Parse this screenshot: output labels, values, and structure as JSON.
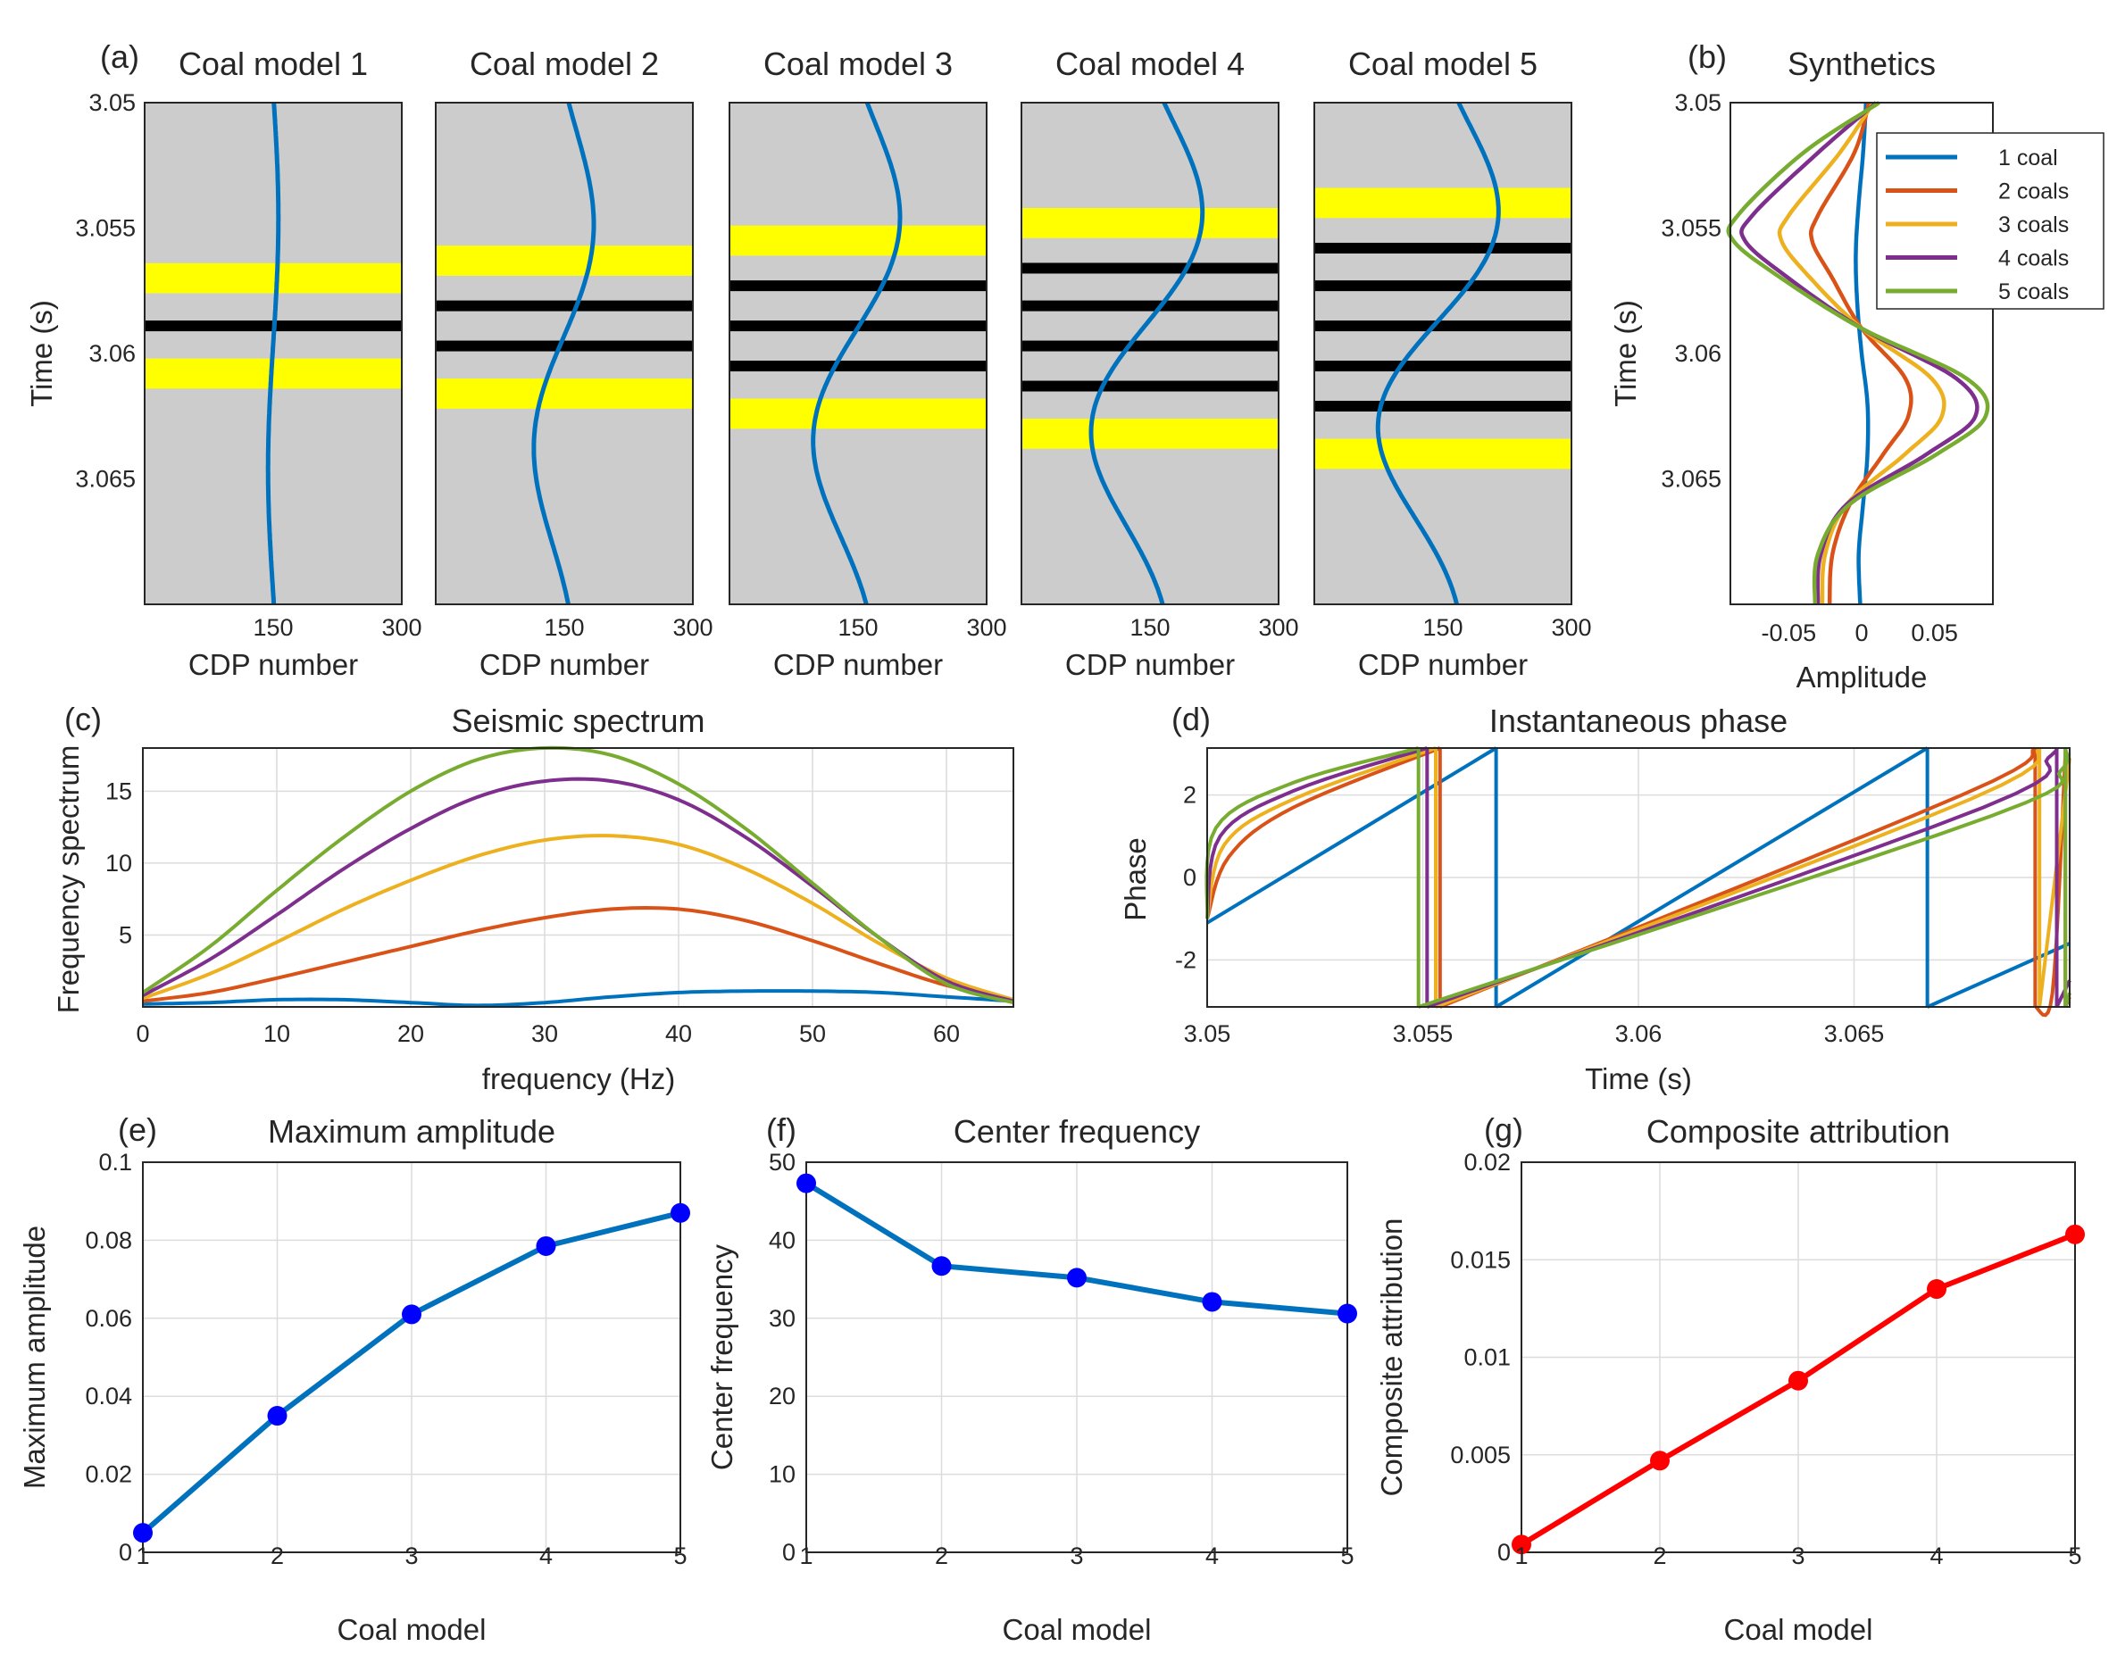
{
  "figure": {
    "panel_tags": [
      "(a)",
      "(b)",
      "(c)",
      "(d)",
      "(e)",
      "(f)",
      "(g)"
    ]
  },
  "chart_data": [
    {
      "id": "a",
      "type": "line",
      "panel_tag": "(a)",
      "subplots": [
        {
          "title": "Coal model 1",
          "yellow": [
            [
              3.0564,
              3.0576
            ],
            [
              3.0602,
              3.0614
            ]
          ],
          "black": [
            3.0589
          ],
          "trace": {
            "amp": 6,
            "decay": 0,
            "phase": 0
          }
        },
        {
          "title": "Coal model 2",
          "yellow": [
            [
              3.0557,
              3.0569
            ],
            [
              3.061,
              3.0622
            ]
          ],
          "black": [
            3.0581,
            3.0597
          ],
          "trace": {
            "amp": 40,
            "decay": 0.3,
            "phase": 0.1
          }
        },
        {
          "title": "Coal model 3",
          "yellow": [
            [
              3.0549,
              3.0561
            ],
            [
              3.0618,
              3.063
            ]
          ],
          "black": [
            3.0573,
            3.0589,
            3.0605
          ],
          "trace": {
            "amp": 58,
            "decay": 0.3,
            "phase": 0.2
          }
        },
        {
          "title": "Coal model 4",
          "yellow": [
            [
              3.0542,
              3.0554
            ],
            [
              3.0626,
              3.0638
            ]
          ],
          "black": [
            3.0566,
            3.0581,
            3.0597,
            3.0613
          ],
          "trace": {
            "amp": 76,
            "decay": 0.35,
            "phase": 0.3
          }
        },
        {
          "title": "Coal model 5",
          "yellow": [
            [
              3.0534,
              3.0546
            ],
            [
              3.0634,
              3.0646
            ]
          ],
          "black": [
            3.0558,
            3.0573,
            3.0589,
            3.0605,
            3.0621
          ],
          "trace": {
            "amp": 84,
            "decay": 0.4,
            "phase": 0.35
          }
        }
      ],
      "xlabel": "CDP number",
      "ylabel": "Time (s)",
      "xticks": [
        150,
        300
      ],
      "xlim": [
        0,
        300
      ],
      "yticks": [
        "3.05",
        "3.055",
        "3.06",
        "3.065"
      ],
      "ylim": [
        3.05,
        3.07
      ],
      "colors": {
        "background": "#cccccc",
        "coal": "#000000",
        "marker": "#ffff00",
        "trace": "#0072bd"
      }
    },
    {
      "id": "b",
      "type": "line",
      "panel_tag": "(b)",
      "title": "Synthetics",
      "xlabel": "Amplitude",
      "ylabel": "Time (s)",
      "xticks": [
        "-0.05",
        "0",
        "0.05"
      ],
      "xlim": [
        -0.09,
        0.09
      ],
      "yticks": [
        "3.05",
        "3.055",
        "3.06",
        "3.065"
      ],
      "ylim": [
        3.05,
        3.07
      ],
      "legend_position": "top-right",
      "series": [
        {
          "name": "1 coal",
          "color": "#0072bd",
          "t": [
            3.05,
            3.052,
            3.054,
            3.056,
            3.058,
            3.06,
            3.062,
            3.064,
            3.066,
            3.068,
            3.07
          ],
          "amp": [
            0.003,
            0.001,
            -0.002,
            -0.004,
            -0.003,
            0.0,
            0.004,
            0.004,
            0.001,
            -0.002,
            -0.001
          ]
        },
        {
          "name": "2 coals",
          "color": "#d95319",
          "t": [
            3.05,
            3.052,
            3.0545,
            3.0555,
            3.057,
            3.059,
            3.061,
            3.0625,
            3.064,
            3.066,
            3.068,
            3.07
          ],
          "amp": [
            0.005,
            -0.005,
            -0.03,
            -0.034,
            -0.02,
            0.0,
            0.03,
            0.032,
            0.015,
            -0.008,
            -0.02,
            -0.022
          ]
        },
        {
          "name": "3 coals",
          "color": "#edb120",
          "t": [
            3.05,
            3.052,
            3.0545,
            3.0555,
            3.057,
            3.059,
            3.061,
            3.0625,
            3.064,
            3.066,
            3.068,
            3.07
          ],
          "amp": [
            0.008,
            -0.015,
            -0.05,
            -0.055,
            -0.035,
            0.0,
            0.048,
            0.055,
            0.03,
            -0.01,
            -0.025,
            -0.027
          ]
        },
        {
          "name": "4 coals",
          "color": "#7e2f8e",
          "t": [
            3.05,
            3.052,
            3.0545,
            3.0555,
            3.057,
            3.059,
            3.061,
            3.0625,
            3.064,
            3.066,
            3.068,
            3.07
          ],
          "amp": [
            0.01,
            -0.03,
            -0.075,
            -0.08,
            -0.05,
            0.0,
            0.065,
            0.078,
            0.045,
            -0.01,
            -0.028,
            -0.03
          ]
        },
        {
          "name": "5 coals",
          "color": "#77ac30",
          "t": [
            3.05,
            3.052,
            3.0545,
            3.0555,
            3.057,
            3.059,
            3.061,
            3.0625,
            3.064,
            3.066,
            3.068,
            3.07
          ],
          "amp": [
            0.012,
            -0.04,
            -0.085,
            -0.088,
            -0.055,
            0.0,
            0.072,
            0.085,
            0.052,
            -0.008,
            -0.03,
            -0.032
          ]
        }
      ]
    },
    {
      "id": "c",
      "type": "line",
      "panel_tag": "(c)",
      "title": "Seismic spectrum",
      "xlabel": "frequency (Hz)",
      "ylabel": "Frequency spectrum",
      "xticks": [
        "0",
        "10",
        "20",
        "30",
        "40",
        "50",
        "60"
      ],
      "xlim": [
        0,
        65
      ],
      "yticks": [
        "5",
        "10",
        "15"
      ],
      "ylim": [
        0,
        18
      ],
      "grid": true,
      "series": [
        {
          "name": "1 coal",
          "color": "#0072bd",
          "x": [
            0,
            5,
            10,
            15,
            20,
            25,
            30,
            35,
            40,
            45,
            50,
            55,
            60,
            65
          ],
          "y": [
            0.2,
            0.3,
            0.5,
            0.5,
            0.3,
            0.1,
            0.3,
            0.7,
            1.0,
            1.1,
            1.1,
            1.0,
            0.7,
            0.4
          ]
        },
        {
          "name": "2 coals",
          "color": "#d95319",
          "x": [
            0,
            5,
            10,
            15,
            20,
            25,
            30,
            35,
            40,
            45,
            50,
            55,
            60,
            65
          ],
          "y": [
            0.4,
            1.0,
            2.0,
            3.1,
            4.2,
            5.3,
            6.2,
            6.8,
            6.8,
            6.0,
            4.6,
            3.0,
            1.5,
            0.5
          ]
        },
        {
          "name": "3 coals",
          "color": "#edb120",
          "x": [
            0,
            5,
            10,
            15,
            20,
            25,
            30,
            35,
            40,
            45,
            50,
            55,
            60,
            65
          ],
          "y": [
            0.6,
            2.3,
            4.5,
            6.8,
            8.8,
            10.5,
            11.6,
            11.9,
            11.3,
            9.6,
            7.2,
            4.4,
            2.0,
            0.5
          ]
        },
        {
          "name": "4 coals",
          "color": "#7e2f8e",
          "x": [
            0,
            5,
            10,
            15,
            20,
            25,
            30,
            35,
            40,
            45,
            50,
            55,
            60,
            65
          ],
          "y": [
            0.8,
            3.3,
            6.4,
            9.6,
            12.4,
            14.6,
            15.7,
            15.7,
            14.4,
            11.8,
            8.4,
            4.8,
            1.8,
            0.4
          ]
        },
        {
          "name": "5 coals",
          "color": "#77ac30",
          "x": [
            0,
            5,
            10,
            15,
            20,
            25,
            30,
            35,
            40,
            45,
            50,
            55,
            60,
            65
          ],
          "y": [
            1.0,
            4.2,
            8.1,
            11.8,
            15.0,
            17.2,
            18.0,
            17.5,
            15.5,
            12.4,
            8.6,
            4.8,
            1.6,
            0.3
          ]
        }
      ]
    },
    {
      "id": "d",
      "type": "line",
      "panel_tag": "(d)",
      "title": "Instantaneous phase",
      "xlabel": "Time (s)",
      "ylabel": "Phase",
      "xticks": [
        "3.05",
        "3.055",
        "3.06",
        "3.065"
      ],
      "xlim": [
        3.05,
        3.07
      ],
      "yticks": [
        "2",
        "0",
        "-2"
      ],
      "ylim": [
        -3.14,
        3.14
      ],
      "grid": true,
      "series": [
        {
          "name": "1 coal",
          "color": "#0072bd",
          "segments": [
            [
              [
                3.05,
                -1.1
              ],
              [
                3.0567,
                3.14
              ]
            ],
            [
              [
                3.0567,
                -3.14
              ],
              [
                3.0667,
                3.14
              ]
            ],
            [
              [
                3.0667,
                -3.14
              ],
              [
                3.07,
                -1.6
              ]
            ]
          ]
        },
        {
          "name": "2 coals",
          "color": "#d95319",
          "segments": [
            [
              [
                3.05,
                -1.0
              ],
              [
                3.0505,
                0.5
              ],
              [
                3.052,
                1.7
              ],
              [
                3.0554,
                3.14
              ]
            ],
            [
              [
                3.0554,
                -3.14
              ],
              [
                3.0675,
                2.0
              ],
              [
                3.0692,
                3.14
              ]
            ],
            [
              [
                3.0692,
                -3.14
              ],
              [
                3.0696,
                -2.8
              ],
              [
                3.0699,
                3.0
              ]
            ],
            [
              [
                3.0699,
                -3.14
              ],
              [
                3.07,
                -2.9
              ]
            ]
          ]
        },
        {
          "name": "3 coals",
          "color": "#edb120",
          "segments": [
            [
              [
                3.05,
                -1.0
              ],
              [
                3.0504,
                0.8
              ],
              [
                3.052,
                1.9
              ],
              [
                3.0553,
                3.14
              ]
            ],
            [
              [
                3.0553,
                -3.14
              ],
              [
                3.0677,
                1.9
              ],
              [
                3.0693,
                3.14
              ]
            ],
            [
              [
                3.0693,
                -3.14
              ],
              [
                3.07,
                2.9
              ]
            ]
          ]
        },
        {
          "name": "4 coals",
          "color": "#7e2f8e",
          "segments": [
            [
              [
                3.05,
                -1.0
              ],
              [
                3.0503,
                1.0
              ],
              [
                3.052,
                2.1
              ],
              [
                3.0551,
                3.14
              ]
            ],
            [
              [
                3.0551,
                -3.14
              ],
              [
                3.068,
                1.7
              ],
              [
                3.0695,
                2.9
              ],
              [
                3.0697,
                3.14
              ]
            ],
            [
              [
                3.0697,
                -3.14
              ],
              [
                3.07,
                -2.5
              ]
            ]
          ]
        },
        {
          "name": "5 coals",
          "color": "#77ac30",
          "segments": [
            [
              [
                3.05,
                -1.0
              ],
              [
                3.0502,
                1.2
              ],
              [
                3.052,
                2.3
              ],
              [
                3.0549,
                3.14
              ]
            ],
            [
              [
                3.0549,
                -3.14
              ],
              [
                3.0682,
                1.5
              ],
              [
                3.0698,
                2.6
              ],
              [
                3.0699,
                3.14
              ]
            ],
            [
              [
                3.0699,
                -3.14
              ],
              [
                3.07,
                -2.8
              ]
            ]
          ]
        }
      ]
    },
    {
      "id": "e",
      "type": "line",
      "panel_tag": "(e)",
      "title": "Maximum amplitude",
      "xlabel": "Coal model",
      "ylabel": "Maximum amplitude",
      "x": [
        1,
        2,
        3,
        4,
        5
      ],
      "y": [
        0.005,
        0.035,
        0.061,
        0.0785,
        0.087
      ],
      "xticks": [
        "1",
        "2",
        "3",
        "4",
        "5"
      ],
      "yticks": [
        "0",
        "0.02",
        "0.04",
        "0.06",
        "0.08",
        "0.1"
      ],
      "ylim": [
        0,
        0.1
      ],
      "grid": true,
      "line_color": "#0072bd",
      "marker_color": "#0000ff"
    },
    {
      "id": "f",
      "type": "line",
      "panel_tag": "(f)",
      "title": "Center frequency",
      "xlabel": "Coal model",
      "ylabel": "Center frequency",
      "x": [
        1,
        2,
        3,
        4,
        5
      ],
      "y": [
        47.3,
        36.7,
        35.2,
        32.1,
        30.6
      ],
      "xticks": [
        "1",
        "2",
        "3",
        "4",
        "5"
      ],
      "yticks": [
        "0",
        "10",
        "20",
        "30",
        "40",
        "50"
      ],
      "ylim": [
        0,
        50
      ],
      "grid": true,
      "line_color": "#0072bd",
      "marker_color": "#0000ff"
    },
    {
      "id": "g",
      "type": "line",
      "panel_tag": "(g)",
      "title": "Composite attribution",
      "xlabel": "Coal model",
      "ylabel": "Composite attribution",
      "x": [
        1,
        2,
        3,
        4,
        5
      ],
      "y": [
        0.0004,
        0.0047,
        0.0088,
        0.0135,
        0.0163
      ],
      "xticks": [
        "1",
        "2",
        "3",
        "4",
        "5"
      ],
      "yticks": [
        "0",
        "0.005",
        "0.01",
        "0.015",
        "0.02"
      ],
      "ylim": [
        0,
        0.02
      ],
      "grid": true,
      "line_color": "#ff0000",
      "marker_color": "#ff0000"
    }
  ]
}
